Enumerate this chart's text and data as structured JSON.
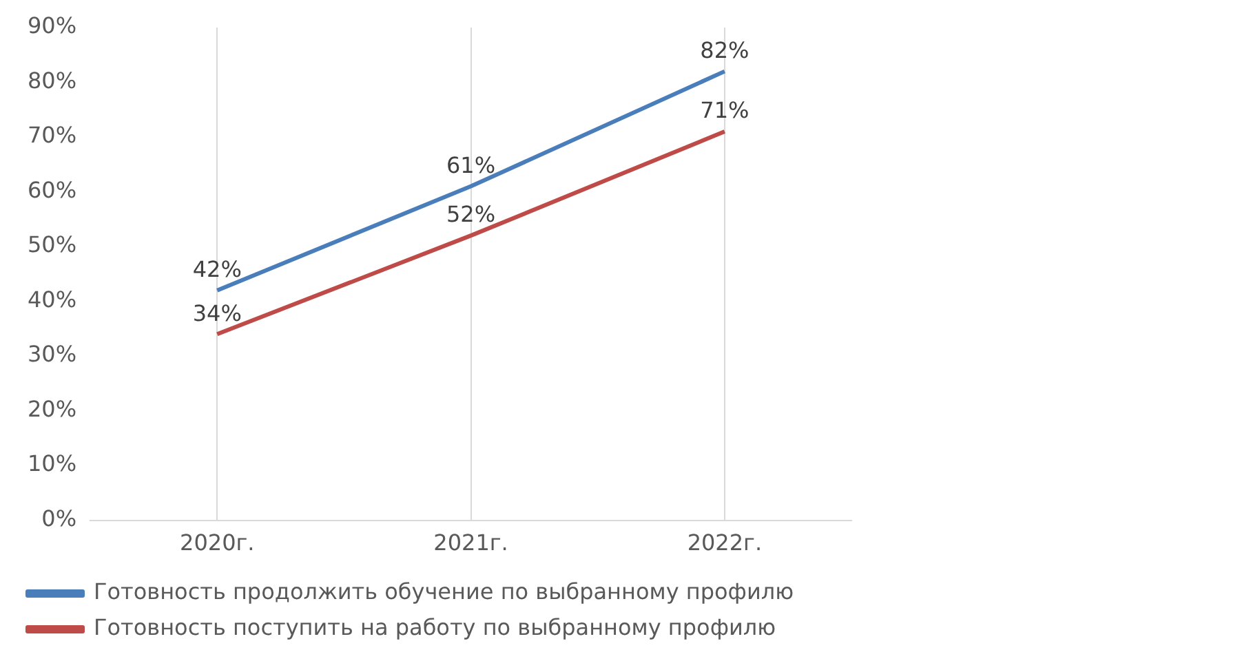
{
  "chart_data": {
    "type": "line",
    "categories": [
      "2020г.",
      "2021г.",
      "2022г."
    ],
    "series": [
      {
        "name": "Готовность продолжить обучение по выбранному профилю",
        "color": "#4a7ebb",
        "values": [
          42,
          61,
          82
        ],
        "value_labels": [
          "42%",
          "61%",
          "82%"
        ]
      },
      {
        "name": "Готовность поступить на работу по выбранному профилю",
        "color": "#be4b48",
        "values": [
          34,
          52,
          71
        ],
        "value_labels": [
          "34%",
          "52%",
          "71%"
        ]
      }
    ],
    "ylim": [
      0,
      90
    ],
    "yticks": [
      {
        "value": 0,
        "label": "0%"
      },
      {
        "value": 10,
        "label": "10%"
      },
      {
        "value": 20,
        "label": "20%"
      },
      {
        "value": 30,
        "label": "30%"
      },
      {
        "value": 40,
        "label": "40%"
      },
      {
        "value": 50,
        "label": "50%"
      },
      {
        "value": 60,
        "label": "60%"
      },
      {
        "value": 70,
        "label": "70%"
      },
      {
        "value": 80,
        "label": "80%"
      },
      {
        "value": 90,
        "label": "90%"
      }
    ],
    "grid": "x",
    "legend": "bottom",
    "marker": "none",
    "line_style": "solid"
  }
}
